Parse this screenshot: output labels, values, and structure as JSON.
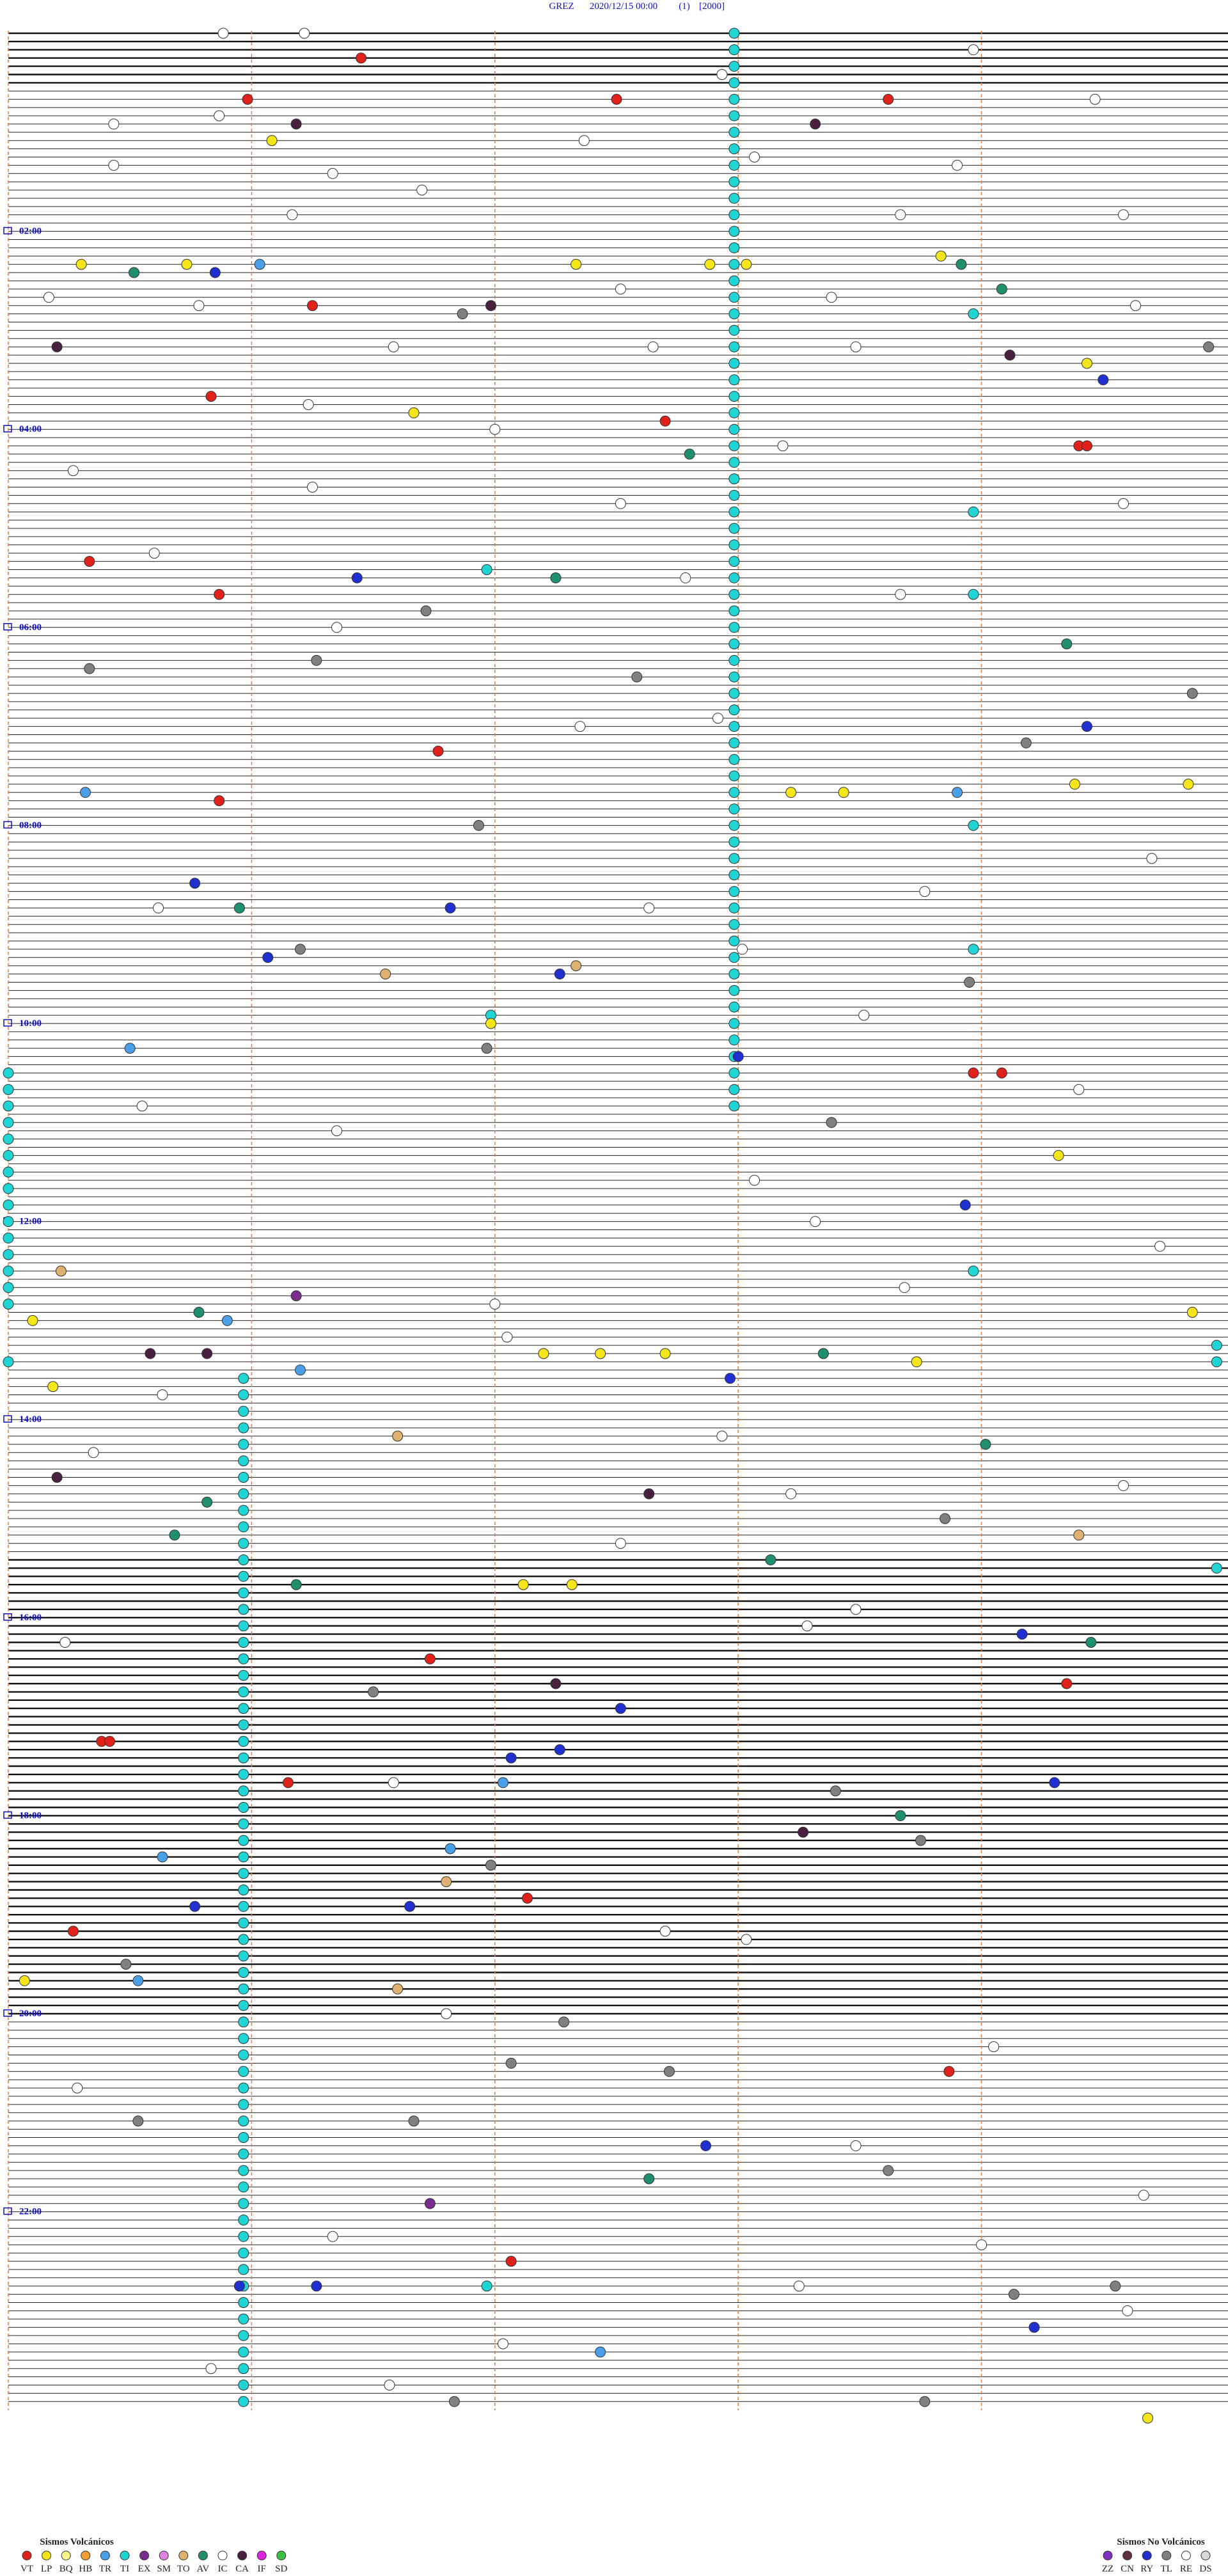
{
  "header": {
    "title": [
      "GREZ",
      "2020/12/15 00:00",
      "(1)",
      "[2000]"
    ]
  },
  "time_labels": [
    "02:00",
    "04:00",
    "06:00",
    "08:00",
    "10:00",
    "12:00",
    "14:00",
    "16:00",
    "18:00",
    "20:00",
    "22:00"
  ],
  "events": [
    [
      0,
      179,
      "TI"
    ],
    [
      2,
      179,
      "TI"
    ],
    [
      4,
      179,
      "TI"
    ],
    [
      6,
      179,
      "TI"
    ],
    [
      8,
      179,
      "TI"
    ],
    [
      10,
      179,
      "TI"
    ],
    [
      12,
      179,
      "TI"
    ],
    [
      14,
      179,
      "TI"
    ],
    [
      16,
      179,
      "TI"
    ],
    [
      18,
      179,
      "TI"
    ],
    [
      20,
      179,
      "TI"
    ],
    [
      22,
      179,
      "TI"
    ],
    [
      24,
      179,
      "TI"
    ],
    [
      26,
      179,
      "TI"
    ],
    [
      28,
      179,
      "TI"
    ],
    [
      30,
      179,
      "TI"
    ],
    [
      32,
      179,
      "TI"
    ],
    [
      34,
      179,
      "TI"
    ],
    [
      36,
      179,
      "TI"
    ],
    [
      38,
      179,
      "TI"
    ],
    [
      40,
      179,
      "TI"
    ],
    [
      42,
      179,
      "TI"
    ],
    [
      44,
      179,
      "TI"
    ],
    [
      46,
      179,
      "TI"
    ],
    [
      48,
      179,
      "TI"
    ],
    [
      50,
      179,
      "TI"
    ],
    [
      52,
      179,
      "TI"
    ],
    [
      54,
      179,
      "TI"
    ],
    [
      56,
      179,
      "TI"
    ],
    [
      58,
      179,
      "TI"
    ],
    [
      60,
      179,
      "TI"
    ],
    [
      62,
      179,
      "TI"
    ],
    [
      64,
      179,
      "TI"
    ],
    [
      66,
      179,
      "TI"
    ],
    [
      68,
      179,
      "TI"
    ],
    [
      70,
      179,
      "TI"
    ],
    [
      72,
      179,
      "TI"
    ],
    [
      74,
      179,
      "TI"
    ],
    [
      76,
      179,
      "TI"
    ],
    [
      78,
      179,
      "TI"
    ],
    [
      80,
      179,
      "TI"
    ],
    [
      82,
      179,
      "TI"
    ],
    [
      84,
      179,
      "TI"
    ],
    [
      86,
      179,
      "TI"
    ],
    [
      88,
      179,
      "TI"
    ],
    [
      90,
      179,
      "TI"
    ],
    [
      92,
      179,
      "TI"
    ],
    [
      94,
      179,
      "TI"
    ],
    [
      96,
      179,
      "TI"
    ],
    [
      98,
      179,
      "TI"
    ],
    [
      100,
      179,
      "TI"
    ],
    [
      102,
      179,
      "TI"
    ],
    [
      104,
      179,
      "TI"
    ],
    [
      106,
      179,
      "TI"
    ],
    [
      108,
      179,
      "TI"
    ],
    [
      110,
      179,
      "TI"
    ],
    [
      112,
      179,
      "TI"
    ],
    [
      114,
      179,
      "TI"
    ],
    [
      116,
      179,
      "TI"
    ],
    [
      118,
      179,
      "TI"
    ],
    [
      120,
      179,
      "TI"
    ],
    [
      122,
      179,
      "TI"
    ],
    [
      124,
      179,
      "TI"
    ],
    [
      126,
      179,
      "TI"
    ],
    [
      128,
      179,
      "TI"
    ],
    [
      130,
      179,
      "TI"
    ],
    [
      126,
      0,
      "TI"
    ],
    [
      128,
      0,
      "TI"
    ],
    [
      130,
      0,
      "TI"
    ],
    [
      132,
      0,
      "TI"
    ],
    [
      134,
      0,
      "TI"
    ],
    [
      136,
      0,
      "TI"
    ],
    [
      138,
      0,
      "TI"
    ],
    [
      140,
      0,
      "TI"
    ],
    [
      142,
      0,
      "TI"
    ],
    [
      144,
      0,
      "TI"
    ],
    [
      146,
      0,
      "TI"
    ],
    [
      148,
      0,
      "TI"
    ],
    [
      150,
      0,
      "TI"
    ],
    [
      152,
      0,
      "TI"
    ],
    [
      154,
      0,
      "TI"
    ],
    [
      161,
      0,
      "TI"
    ],
    [
      163,
      58,
      "TI"
    ],
    [
      165,
      58,
      "TI"
    ],
    [
      167,
      58,
      "TI"
    ],
    [
      169,
      58,
      "TI"
    ],
    [
      171,
      58,
      "TI"
    ],
    [
      173,
      58,
      "TI"
    ],
    [
      175,
      58,
      "TI"
    ],
    [
      177,
      58,
      "TI"
    ],
    [
      179,
      58,
      "TI"
    ],
    [
      181,
      58,
      "TI"
    ],
    [
      183,
      58,
      "TI"
    ],
    [
      185,
      58,
      "TI"
    ],
    [
      187,
      58,
      "TI"
    ],
    [
      189,
      58,
      "TI"
    ],
    [
      191,
      58,
      "TI"
    ],
    [
      193,
      58,
      "TI"
    ],
    [
      195,
      58,
      "TI"
    ],
    [
      197,
      58,
      "TI"
    ],
    [
      199,
      58,
      "TI"
    ],
    [
      201,
      58,
      "TI"
    ],
    [
      203,
      58,
      "TI"
    ],
    [
      205,
      58,
      "TI"
    ],
    [
      207,
      58,
      "TI"
    ],
    [
      209,
      58,
      "TI"
    ],
    [
      211,
      58,
      "TI"
    ],
    [
      213,
      58,
      "TI"
    ],
    [
      215,
      58,
      "TI"
    ],
    [
      217,
      58,
      "TI"
    ],
    [
      219,
      58,
      "TI"
    ],
    [
      221,
      58,
      "TI"
    ],
    [
      223,
      58,
      "TI"
    ],
    [
      225,
      58,
      "TI"
    ],
    [
      227,
      58,
      "TI"
    ],
    [
      229,
      58,
      "TI"
    ],
    [
      231,
      58,
      "TI"
    ],
    [
      233,
      58,
      "TI"
    ],
    [
      235,
      58,
      "TI"
    ],
    [
      237,
      58,
      "TI"
    ],
    [
      239,
      58,
      "TI"
    ],
    [
      241,
      58,
      "TI"
    ],
    [
      243,
      58,
      "TI"
    ],
    [
      245,
      58,
      "TI"
    ],
    [
      247,
      58,
      "TI"
    ],
    [
      249,
      58,
      "TI"
    ],
    [
      251,
      58,
      "TI"
    ],
    [
      253,
      58,
      "TI"
    ],
    [
      255,
      58,
      "TI"
    ],
    [
      257,
      58,
      "TI"
    ],
    [
      259,
      58,
      "TI"
    ],
    [
      261,
      58,
      "TI"
    ],
    [
      263,
      58,
      "TI"
    ],
    [
      265,
      58,
      "TI"
    ],
    [
      267,
      58,
      "TI"
    ],
    [
      269,
      58,
      "TI"
    ],
    [
      271,
      58,
      "TI"
    ],
    [
      273,
      58,
      "TI"
    ],
    [
      275,
      58,
      "TI"
    ],
    [
      277,
      58,
      "TI"
    ],
    [
      279,
      58,
      "TI"
    ],
    [
      281,
      58,
      "TI"
    ],
    [
      283,
      58,
      "TI"
    ],
    [
      285,
      58,
      "TI"
    ],
    [
      287,
      58,
      "TI"
    ],
    [
      34,
      238,
      "TI"
    ],
    [
      58,
      238,
      "TI"
    ],
    [
      68,
      238,
      "TI"
    ],
    [
      96,
      238,
      "TI"
    ],
    [
      111,
      238,
      "TI"
    ],
    [
      150,
      238,
      "TI"
    ],
    [
      159,
      298,
      "TI"
    ],
    [
      161,
      298,
      "TI"
    ],
    [
      186,
      298,
      "TI"
    ],
    [
      3,
      87,
      "VT"
    ],
    [
      8,
      59,
      "VT"
    ],
    [
      8,
      150,
      "VT"
    ],
    [
      8,
      217,
      "VT"
    ],
    [
      11,
      71,
      "CA"
    ],
    [
      11,
      199,
      "CA"
    ],
    [
      13,
      65,
      "LP"
    ],
    [
      28,
      18,
      "LP"
    ],
    [
      28,
      44,
      "LP"
    ],
    [
      28,
      140,
      "LP"
    ],
    [
      28,
      173,
      "LP"
    ],
    [
      28,
      182,
      "LP"
    ],
    [
      27,
      230,
      "LP"
    ],
    [
      29,
      51,
      "RY"
    ],
    [
      28,
      62,
      "TR"
    ],
    [
      29,
      31,
      "AV"
    ],
    [
      28,
      235,
      "AV"
    ],
    [
      31,
      245,
      "AV"
    ],
    [
      33,
      75,
      "VT"
    ],
    [
      34,
      112,
      "TL"
    ],
    [
      33,
      119,
      "CA"
    ],
    [
      38,
      12,
      "CA"
    ],
    [
      39,
      247,
      "CA"
    ],
    [
      38,
      296,
      "TL"
    ],
    [
      40,
      266,
      "LP"
    ],
    [
      42,
      270,
      "RY"
    ],
    [
      44,
      50,
      "VT"
    ],
    [
      46,
      100,
      "LP"
    ],
    [
      47,
      162,
      "VT"
    ],
    [
      51,
      168,
      "AV"
    ],
    [
      50,
      264,
      "VT"
    ],
    [
      50,
      266,
      "VT"
    ],
    [
      64,
      20,
      "VT"
    ],
    [
      66,
      86,
      "RY"
    ],
    [
      65,
      118,
      "TI"
    ],
    [
      66,
      135,
      "AV"
    ],
    [
      68,
      52,
      "VT"
    ],
    [
      70,
      103,
      "TL"
    ],
    [
      74,
      261,
      "AV"
    ],
    [
      77,
      20,
      "TL"
    ],
    [
      76,
      76,
      "TL"
    ],
    [
      78,
      155,
      "TL"
    ],
    [
      80,
      292,
      "TL"
    ],
    [
      84,
      266,
      "RY"
    ],
    [
      86,
      251,
      "TL"
    ],
    [
      87,
      106,
      "VT"
    ],
    [
      91,
      263,
      "LP"
    ],
    [
      91,
      291,
      "LP"
    ],
    [
      92,
      19,
      "TR"
    ],
    [
      92,
      193,
      "LP"
    ],
    [
      92,
      206,
      "LP"
    ],
    [
      92,
      234,
      "TR"
    ],
    [
      93,
      52,
      "VT"
    ],
    [
      96,
      116,
      "TL"
    ],
    [
      103,
      46,
      "RY"
    ],
    [
      106,
      57,
      "AV"
    ],
    [
      106,
      109,
      "RY"
    ],
    [
      112,
      64,
      "RY"
    ],
    [
      111,
      72,
      "TL"
    ],
    [
      114,
      93,
      "TO"
    ],
    [
      113,
      140,
      "TO"
    ],
    [
      114,
      136,
      "RY"
    ],
    [
      115,
      237,
      "TL"
    ],
    [
      119,
      119,
      "TI"
    ],
    [
      120,
      119,
      "LP"
    ],
    [
      123,
      118,
      "TL"
    ],
    [
      123,
      30,
      "TR"
    ],
    [
      124,
      180,
      "RY"
    ],
    [
      126,
      238,
      "VT"
    ],
    [
      126,
      245,
      "VT"
    ],
    [
      132,
      203,
      "TL"
    ],
    [
      136,
      259,
      "LP"
    ],
    [
      142,
      236,
      "RY"
    ],
    [
      150,
      13,
      "TO"
    ],
    [
      153,
      71,
      "EX"
    ],
    [
      155,
      47,
      "AV"
    ],
    [
      156,
      54,
      "TR"
    ],
    [
      156,
      6,
      "LP"
    ],
    [
      155,
      292,
      "LP"
    ],
    [
      160,
      35,
      "CA"
    ],
    [
      160,
      49,
      "CA"
    ],
    [
      160,
      132,
      "LP"
    ],
    [
      160,
      146,
      "LP"
    ],
    [
      160,
      162,
      "LP"
    ],
    [
      160,
      201,
      "AV"
    ],
    [
      162,
      72,
      "TR"
    ],
    [
      163,
      178,
      "RY"
    ],
    [
      161,
      224,
      "LP"
    ],
    [
      164,
      11,
      "LP"
    ],
    [
      170,
      96,
      "TO"
    ],
    [
      171,
      241,
      "AV"
    ],
    [
      175,
      12,
      "CA"
    ],
    [
      177,
      158,
      "CA"
    ],
    [
      178,
      49,
      "AV"
    ],
    [
      180,
      231,
      "TL"
    ],
    [
      182,
      41,
      "AV"
    ],
    [
      182,
      264,
      "TO"
    ],
    [
      185,
      188,
      "AV"
    ],
    [
      188,
      71,
      "AV"
    ],
    [
      188,
      127,
      "LP"
    ],
    [
      188,
      139,
      "LP"
    ],
    [
      194,
      250,
      "RY"
    ],
    [
      195,
      267,
      "AV"
    ],
    [
      197,
      104,
      "VT"
    ],
    [
      201,
      90,
      "TL"
    ],
    [
      200,
      135,
      "CA"
    ],
    [
      200,
      261,
      "VT"
    ],
    [
      203,
      151,
      "RY"
    ],
    [
      207,
      23,
      "VT"
    ],
    [
      207,
      25,
      "VT"
    ],
    [
      208,
      136,
      "RY"
    ],
    [
      209,
      124,
      "RY"
    ],
    [
      212,
      69,
      "VT"
    ],
    [
      212,
      122,
      "TR"
    ],
    [
      213,
      204,
      "TL"
    ],
    [
      212,
      258,
      "RY"
    ],
    [
      216,
      220,
      "AV"
    ],
    [
      218,
      196,
      "CA"
    ],
    [
      219,
      225,
      "TL"
    ],
    [
      221,
      38,
      "TR"
    ],
    [
      220,
      109,
      "TR"
    ],
    [
      222,
      119,
      "TL"
    ],
    [
      224,
      108,
      "TO"
    ],
    [
      226,
      128,
      "VT"
    ],
    [
      227,
      46,
      "RY"
    ],
    [
      227,
      99,
      "RY"
    ],
    [
      230,
      16,
      "VT"
    ],
    [
      234,
      29,
      "TL"
    ],
    [
      236,
      4,
      "LP"
    ],
    [
      236,
      32,
      "TR"
    ],
    [
      237,
      96,
      "TO"
    ],
    [
      241,
      137,
      "TL"
    ],
    [
      247,
      232,
      "VT"
    ],
    [
      246,
      124,
      "TL"
    ],
    [
      247,
      163,
      "TL"
    ],
    [
      253,
      32,
      "TL"
    ],
    [
      253,
      100,
      "TL"
    ],
    [
      256,
      172,
      "RY"
    ],
    [
      259,
      217,
      "TL"
    ],
    [
      260,
      158,
      "AV"
    ],
    [
      263,
      104,
      "EX"
    ],
    [
      270,
      124,
      "VT"
    ],
    [
      273,
      57,
      "RY"
    ],
    [
      273,
      76,
      "RY"
    ],
    [
      273,
      118,
      "TI"
    ],
    [
      274,
      248,
      "TL"
    ],
    [
      273,
      273,
      "TL"
    ],
    [
      278,
      253,
      "RY"
    ],
    [
      281,
      146,
      "TR"
    ],
    [
      287,
      110,
      "TL"
    ],
    [
      287,
      226,
      "TL"
    ],
    [
      289,
      281,
      "LP"
    ],
    [
      0,
      53,
      "IC"
    ],
    [
      0,
      73,
      "IC"
    ],
    [
      5,
      176,
      "IC"
    ],
    [
      2,
      238,
      "IC"
    ],
    [
      8,
      268,
      "IC"
    ],
    [
      11,
      26,
      "IC"
    ],
    [
      10,
      52,
      "IC"
    ],
    [
      13,
      142,
      "IC"
    ],
    [
      16,
      26,
      "IC"
    ],
    [
      17,
      80,
      "IC"
    ],
    [
      15,
      184,
      "IC"
    ],
    [
      16,
      234,
      "IC"
    ],
    [
      22,
      70,
      "IC"
    ],
    [
      19,
      102,
      "IC"
    ],
    [
      22,
      220,
      "IC"
    ],
    [
      22,
      275,
      "IC"
    ],
    [
      32,
      10,
      "IC"
    ],
    [
      33,
      47,
      "IC"
    ],
    [
      31,
      151,
      "IC"
    ],
    [
      32,
      203,
      "IC"
    ],
    [
      33,
      278,
      "IC"
    ],
    [
      38,
      95,
      "IC"
    ],
    [
      38,
      159,
      "IC"
    ],
    [
      38,
      209,
      "IC"
    ],
    [
      45,
      74,
      "IC"
    ],
    [
      48,
      120,
      "IC"
    ],
    [
      50,
      191,
      "IC"
    ],
    [
      53,
      16,
      "IC"
    ],
    [
      55,
      75,
      "IC"
    ],
    [
      57,
      151,
      "IC"
    ],
    [
      57,
      275,
      "IC"
    ],
    [
      63,
      36,
      "IC"
    ],
    [
      66,
      167,
      "IC"
    ],
    [
      68,
      220,
      "IC"
    ],
    [
      72,
      81,
      "IC"
    ],
    [
      83,
      175,
      "IC"
    ],
    [
      84,
      141,
      "IC"
    ],
    [
      100,
      282,
      "IC"
    ],
    [
      104,
      226,
      "IC"
    ],
    [
      106,
      37,
      "IC"
    ],
    [
      106,
      158,
      "IC"
    ],
    [
      111,
      181,
      "IC"
    ],
    [
      119,
      211,
      "IC"
    ],
    [
      128,
      264,
      "IC"
    ],
    [
      130,
      33,
      "IC"
    ],
    [
      133,
      81,
      "IC"
    ],
    [
      139,
      184,
      "IC"
    ],
    [
      144,
      199,
      "IC"
    ],
    [
      147,
      284,
      "IC"
    ],
    [
      152,
      221,
      "IC"
    ],
    [
      154,
      120,
      "IC"
    ],
    [
      158,
      123,
      "IC"
    ],
    [
      165,
      38,
      "IC"
    ],
    [
      170,
      176,
      "IC"
    ],
    [
      177,
      193,
      "IC"
    ],
    [
      176,
      275,
      "IC"
    ],
    [
      172,
      21,
      "IC"
    ],
    [
      183,
      151,
      "IC"
    ],
    [
      193,
      197,
      "IC"
    ],
    [
      195,
      14,
      "IC"
    ],
    [
      191,
      209,
      "IC"
    ],
    [
      212,
      95,
      "IC"
    ],
    [
      230,
      162,
      "IC"
    ],
    [
      231,
      182,
      "IC"
    ],
    [
      240,
      108,
      "IC"
    ],
    [
      244,
      243,
      "IC"
    ],
    [
      249,
      17,
      "IC"
    ],
    [
      256,
      209,
      "IC"
    ],
    [
      262,
      280,
      "IC"
    ],
    [
      267,
      80,
      "IC"
    ],
    [
      268,
      240,
      "IC"
    ],
    [
      273,
      195,
      "IC"
    ],
    [
      280,
      122,
      "IC"
    ],
    [
      276,
      276,
      "IC"
    ],
    [
      285,
      94,
      "IC"
    ],
    [
      283,
      50,
      "IC"
    ]
  ],
  "legend": {
    "volcanic": {
      "title": "Sismos Volcánicos",
      "items": [
        {
          "code": "VT",
          "color": "#e0201a"
        },
        {
          "code": "LP",
          "color": "#f5e51b"
        },
        {
          "code": "BQ",
          "color": "#fff68f"
        },
        {
          "code": "HB",
          "color": "#f0a030"
        },
        {
          "code": "TR",
          "color": "#4aa0e8"
        },
        {
          "code": "TI",
          "color": "#21d4d4"
        },
        {
          "code": "EX",
          "color": "#7b2d8e"
        },
        {
          "code": "SM",
          "color": "#e080e0"
        },
        {
          "code": "TO",
          "color": "#e0b070"
        },
        {
          "code": "AV",
          "color": "#1f8f6f"
        },
        {
          "code": "IC",
          "color": "#ffffff"
        },
        {
          "code": "CA",
          "color": "#4a2040"
        },
        {
          "code": "IF",
          "color": "#e020e0"
        },
        {
          "code": "SD",
          "color": "#40c040"
        }
      ]
    },
    "non_volcanic": {
      "title": "Sismos No Volcánicos",
      "items": [
        {
          "code": "ZZ",
          "color": "#8030c0"
        },
        {
          "code": "CN",
          "color": "#603040"
        },
        {
          "code": "RY",
          "color": "#2030d0"
        },
        {
          "code": "TL",
          "color": "#808080"
        },
        {
          "code": "RE",
          "color": "#ffffff"
        },
        {
          "code": "DS",
          "color": "#d8d8d8"
        }
      ]
    }
  }
}
